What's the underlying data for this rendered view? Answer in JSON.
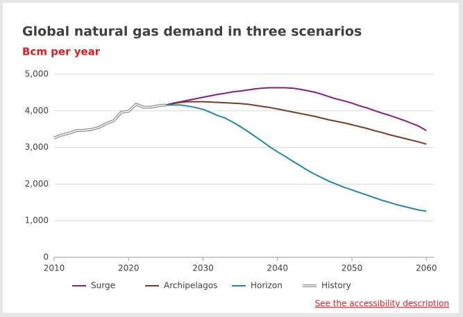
{
  "chart_data": {
    "type": "line",
    "title": "Global natural gas demand in three scenarios",
    "subtitle": "Bcm per year",
    "x": [
      2010,
      2011,
      2012,
      2013,
      2014,
      2015,
      2016,
      2017,
      2018,
      2019,
      2020,
      2021,
      2022,
      2023,
      2024,
      2025,
      2026,
      2027,
      2028,
      2029,
      2030,
      2031,
      2032,
      2033,
      2034,
      2035,
      2036,
      2037,
      2038,
      2039,
      2040,
      2041,
      2042,
      2043,
      2044,
      2045,
      2046,
      2047,
      2048,
      2049,
      2050,
      2051,
      2052,
      2053,
      2054,
      2055,
      2056,
      2057,
      2058,
      2059,
      2060
    ],
    "series": [
      {
        "name": "Surge",
        "color": "#8b1a7e",
        "values": [
          null,
          null,
          null,
          null,
          null,
          null,
          null,
          null,
          null,
          null,
          null,
          null,
          null,
          null,
          null,
          4160,
          4210,
          4250,
          4290,
          4330,
          4370,
          4410,
          4450,
          4480,
          4520,
          4540,
          4570,
          4600,
          4620,
          4630,
          4630,
          4630,
          4620,
          4590,
          4550,
          4510,
          4450,
          4380,
          4320,
          4270,
          4210,
          4140,
          4080,
          4010,
          3940,
          3880,
          3810,
          3740,
          3660,
          3580,
          3460
        ]
      },
      {
        "name": "Archipelagos",
        "color": "#7a3b1e",
        "values": [
          null,
          null,
          null,
          null,
          null,
          null,
          null,
          null,
          null,
          null,
          null,
          null,
          null,
          null,
          null,
          4160,
          4200,
          4230,
          4250,
          4250,
          4250,
          4240,
          4230,
          4220,
          4210,
          4200,
          4180,
          4150,
          4120,
          4090,
          4050,
          4010,
          3970,
          3930,
          3890,
          3850,
          3800,
          3750,
          3710,
          3670,
          3620,
          3570,
          3520,
          3460,
          3410,
          3350,
          3300,
          3250,
          3200,
          3150,
          3090
        ]
      },
      {
        "name": "Horizon",
        "color": "#1e8aa8",
        "values": [
          null,
          null,
          null,
          null,
          null,
          null,
          null,
          null,
          null,
          null,
          null,
          null,
          null,
          null,
          null,
          4160,
          4160,
          4160,
          4130,
          4090,
          4040,
          3960,
          3870,
          3800,
          3690,
          3570,
          3440,
          3300,
          3160,
          3010,
          2880,
          2760,
          2630,
          2510,
          2380,
          2270,
          2170,
          2070,
          1990,
          1910,
          1840,
          1770,
          1700,
          1630,
          1560,
          1500,
          1440,
          1390,
          1340,
          1290,
          1260
        ]
      },
      {
        "name": "History",
        "color": "#8c8c8c",
        "values": [
          3260,
          3340,
          3390,
          3460,
          3470,
          3490,
          3550,
          3650,
          3730,
          3960,
          3990,
          4180,
          4100,
          4100,
          4140,
          4160,
          null,
          null,
          null,
          null,
          null,
          null,
          null,
          null,
          null,
          null,
          null,
          null,
          null,
          null,
          null,
          null,
          null,
          null,
          null,
          null,
          null,
          null,
          null,
          null,
          null,
          null,
          null,
          null,
          null,
          null,
          null,
          null,
          null,
          null,
          null
        ]
      }
    ],
    "xlim": [
      2010,
      2061
    ],
    "xticks": [
      2010,
      2020,
      2030,
      2040,
      2050,
      2060
    ],
    "ylim": [
      0,
      5000
    ],
    "yticks": [
      0,
      {
        "value": 1000,
        "label": "1,000"
      },
      {
        "value": 2000,
        "label": "2,000"
      },
      {
        "value": 3000,
        "label": "3,000"
      },
      {
        "value": 4000,
        "label": "4,000"
      },
      {
        "value": 5000,
        "label": "5,000"
      }
    ],
    "grid": true,
    "legend": "bottom",
    "link": "See the accessibility description"
  }
}
